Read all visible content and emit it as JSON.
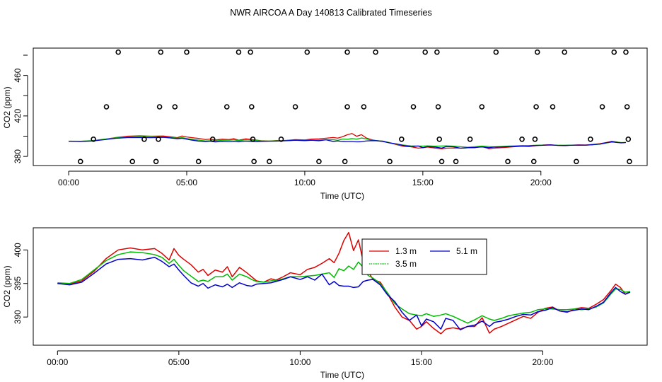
{
  "title": "NWR AIRCOA A  Day 140813  Calibrated Timeseries",
  "colors": {
    "s13": "#dd0000",
    "s35": "#00bb00",
    "s51": "#0000cc",
    "points": "#000000"
  },
  "chart_data": [
    {
      "type": "scatter+line",
      "xlabel": "Time (UTC)",
      "ylabel": "CO2 (ppm)",
      "xlim": [
        -1.5,
        24.5
      ],
      "ylim": [
        371,
        487
      ],
      "xticks": [
        0,
        5,
        10,
        15,
        20
      ],
      "xtick_labels": [
        "00:00",
        "05:00",
        "10:00",
        "15:00",
        "20:00"
      ],
      "yticks": [
        380,
        420,
        460
      ],
      "ytick_labels": [
        "380",
        "420",
        "460"
      ],
      "scatter_points": [
        [
          0.5,
          375
        ],
        [
          1.05,
          397
        ],
        [
          1.6,
          429
        ],
        [
          2.1,
          483
        ],
        [
          2.7,
          375
        ],
        [
          3.2,
          397
        ],
        [
          3.7,
          375
        ],
        [
          3.8,
          397
        ],
        [
          3.85,
          429
        ],
        [
          3.9,
          483
        ],
        [
          4.5,
          429
        ],
        [
          5.0,
          483
        ],
        [
          5.5,
          375
        ],
        [
          6.1,
          397
        ],
        [
          6.7,
          429
        ],
        [
          7.2,
          483
        ],
        [
          7.7,
          483
        ],
        [
          7.75,
          429
        ],
        [
          7.8,
          397
        ],
        [
          7.85,
          375
        ],
        [
          8.5,
          375
        ],
        [
          9.0,
          397
        ],
        [
          9.6,
          429
        ],
        [
          10.1,
          483
        ],
        [
          10.6,
          375
        ],
        [
          11.8,
          483
        ],
        [
          11.8,
          429
        ],
        [
          11.7,
          375
        ],
        [
          12.5,
          429
        ],
        [
          13.0,
          483
        ],
        [
          13.6,
          375
        ],
        [
          14.1,
          397
        ],
        [
          14.6,
          429
        ],
        [
          15.1,
          483
        ],
        [
          15.6,
          483
        ],
        [
          15.65,
          429
        ],
        [
          15.7,
          397
        ],
        [
          15.8,
          375
        ],
        [
          16.4,
          375
        ],
        [
          17.0,
          397
        ],
        [
          17.5,
          429
        ],
        [
          18.1,
          483
        ],
        [
          18.6,
          375
        ],
        [
          19.2,
          397
        ],
        [
          19.7,
          375
        ],
        [
          19.75,
          397
        ],
        [
          19.8,
          429
        ],
        [
          19.85,
          483
        ],
        [
          20.5,
          429
        ],
        [
          21.0,
          483
        ],
        [
          21.5,
          375
        ],
        [
          22.1,
          397
        ],
        [
          22.6,
          429
        ],
        [
          23.1,
          483
        ],
        [
          23.6,
          483
        ],
        [
          23.65,
          429
        ],
        [
          23.7,
          397
        ],
        [
          23.75,
          375
        ]
      ],
      "series": [
        {
          "name": "1.3 m",
          "color": "#dd0000"
        },
        {
          "name": "3.5 m",
          "color": "#00bb00"
        },
        {
          "name": "5.1 m",
          "color": "#0000cc"
        }
      ]
    },
    {
      "type": "line",
      "xlabel": "Time (UTC)",
      "ylabel": "CO2 (ppm)",
      "xlim": [
        -1.0,
        24.3
      ],
      "ylim": [
        385.8,
        403.3
      ],
      "xticks": [
        0,
        5,
        10,
        15,
        20
      ],
      "xtick_labels": [
        "00:00",
        "05:00",
        "10:00",
        "15:00",
        "20:00"
      ],
      "yticks": [
        390,
        395,
        400
      ],
      "ytick_labels": [
        "390",
        "395",
        "400"
      ],
      "legend": {
        "position": "top-center",
        "entries": [
          "1.3 m",
          "5.1 m",
          "3.5 m"
        ]
      },
      "series": [
        {
          "name": "1.3 m",
          "color": "#dd0000",
          "x": [
            0,
            0.5,
            1,
            1.5,
            2,
            2.5,
            3,
            3.5,
            4,
            4.3,
            4.6,
            4.8,
            5,
            5.2,
            5.5,
            5.8,
            6,
            6.2,
            6.5,
            6.8,
            7,
            7.2,
            7.5,
            7.8,
            8,
            8.2,
            8.5,
            8.8,
            9,
            9.3,
            9.6,
            10,
            10.3,
            10.6,
            10.9,
            11.2,
            11.4,
            11.6,
            11.8,
            12,
            12.2,
            12.4,
            12.6,
            12.8,
            13,
            13.3,
            13.6,
            13.9,
            14.2,
            14.5,
            14.8,
            15,
            15.2,
            15.5,
            15.8,
            16,
            16.3,
            16.6,
            16.9,
            17.2,
            17.5,
            17.8,
            18,
            18.3,
            18.6,
            18.9,
            19.2,
            19.5,
            19.8,
            20.1,
            20.4,
            20.7,
            21,
            21.3,
            21.6,
            21.9,
            22.2,
            22.5,
            22.8,
            23,
            23.2,
            23.4,
            23.6
          ],
          "y": [
            395.0,
            394.9,
            395.4,
            396.8,
            398.7,
            400.0,
            400.3,
            400.0,
            400.2,
            399.5,
            398.5,
            400.2,
            399.2,
            398.6,
            397.8,
            396.7,
            397.1,
            396.2,
            397.0,
            396.7,
            397.5,
            396.0,
            397.4,
            396.6,
            396.0,
            395.4,
            395.2,
            395.7,
            395.5,
            396.0,
            396.6,
            396.3,
            397.1,
            397.4,
            398.0,
            398.7,
            398.1,
            399.5,
            401.4,
            402.6,
            399.9,
            401.5,
            398.3,
            396.8,
            395.6,
            395.2,
            393.5,
            391.5,
            390.0,
            389.5,
            388.2,
            388.6,
            389.3,
            388.3,
            387.5,
            388.2,
            388.4,
            388.2,
            388.6,
            388.6,
            389.9,
            387.6,
            388.2,
            388.6,
            389.1,
            389.6,
            390.1,
            389.8,
            390.7,
            391.3,
            391.5,
            390.9,
            390.7,
            391.2,
            391.4,
            391.3,
            391.9,
            392.6,
            393.9,
            394.9,
            394.4,
            393.4,
            393.8
          ]
        },
        {
          "name": "3.5 m",
          "color": "#00bb00",
          "x": [
            0,
            0.5,
            1,
            1.5,
            2,
            2.5,
            3,
            3.5,
            4,
            4.3,
            4.6,
            4.8,
            5,
            5.2,
            5.5,
            5.8,
            6,
            6.2,
            6.5,
            6.8,
            7,
            7.2,
            7.5,
            7.8,
            8,
            8.2,
            8.5,
            8.8,
            9,
            9.3,
            9.6,
            10,
            10.3,
            10.6,
            10.9,
            11.2,
            11.4,
            11.6,
            11.8,
            12,
            12.2,
            12.4,
            12.6,
            12.8,
            13,
            13.3,
            13.6,
            13.9,
            14.2,
            14.5,
            14.8,
            15,
            15.2,
            15.5,
            15.8,
            16,
            16.3,
            16.6,
            16.9,
            17.2,
            17.5,
            17.8,
            18,
            18.3,
            18.6,
            18.9,
            19.2,
            19.5,
            19.8,
            20.1,
            20.4,
            20.7,
            21,
            21.3,
            21.6,
            21.9,
            22.2,
            22.5,
            22.8,
            23,
            23.2,
            23.4,
            23.6
          ],
          "y": [
            395.1,
            395.0,
            395.6,
            397.0,
            398.4,
            399.3,
            399.7,
            399.6,
            399.3,
            398.9,
            398.0,
            398.6,
            397.7,
            396.9,
            396.1,
            395.3,
            395.5,
            395.3,
            396.0,
            396.0,
            396.4,
            395.5,
            396.4,
            396.0,
            395.6,
            395.3,
            395.2,
            395.4,
            395.4,
            395.7,
            396.0,
            396.0,
            396.1,
            396.2,
            396.4,
            396.6,
            395.9,
            397.2,
            396.9,
            397.6,
            397.1,
            398.2,
            397.4,
            396.2,
            395.8,
            395.0,
            393.6,
            392.0,
            391.2,
            390.5,
            390.3,
            390.2,
            390.5,
            390.1,
            390.3,
            390.5,
            390.1,
            389.6,
            389.1,
            389.6,
            390.2,
            389.7,
            389.5,
            389.8,
            390.2,
            390.4,
            390.6,
            390.7,
            391.1,
            391.2,
            391.2,
            391.1,
            391.1,
            391.2,
            391.1,
            391.2,
            391.5,
            392.1,
            393.4,
            394.2,
            394.1,
            393.7,
            393.8
          ]
        },
        {
          "name": "5.1 m",
          "color": "#0000cc",
          "x": [
            0,
            0.5,
            1,
            1.5,
            2,
            2.5,
            3,
            3.5,
            4,
            4.3,
            4.6,
            4.8,
            5,
            5.2,
            5.5,
            5.8,
            6,
            6.2,
            6.5,
            6.8,
            7,
            7.2,
            7.5,
            7.8,
            8,
            8.2,
            8.5,
            8.8,
            9,
            9.3,
            9.6,
            10,
            10.3,
            10.6,
            10.9,
            11.2,
            11.4,
            11.6,
            11.8,
            12,
            12.2,
            12.4,
            12.6,
            12.8,
            13,
            13.3,
            13.6,
            13.9,
            14.2,
            14.5,
            14.8,
            15,
            15.2,
            15.5,
            15.8,
            16,
            16.3,
            16.6,
            16.9,
            17.2,
            17.5,
            17.8,
            18,
            18.3,
            18.6,
            18.9,
            19.2,
            19.5,
            19.8,
            20.1,
            20.4,
            20.7,
            21,
            21.3,
            21.6,
            21.9,
            22.2,
            22.5,
            22.8,
            23,
            23.2,
            23.4,
            23.6
          ],
          "y": [
            395.0,
            394.8,
            395.2,
            396.5,
            397.9,
            398.6,
            398.7,
            398.5,
            398.9,
            398.3,
            397.5,
            397.9,
            397.0,
            396.2,
            395.1,
            394.6,
            395.0,
            394.3,
            394.8,
            394.5,
            394.9,
            394.4,
            395.1,
            394.7,
            394.6,
            394.9,
            395.0,
            395.1,
            395.3,
            395.6,
            396.0,
            395.6,
            396.0,
            395.5,
            396.4,
            394.8,
            395.3,
            394.7,
            394.6,
            394.6,
            394.4,
            394.5,
            395.3,
            395.5,
            395.6,
            394.8,
            393.3,
            392.3,
            390.7,
            389.5,
            390.3,
            388.7,
            389.7,
            389.3,
            388.2,
            389.8,
            389.5,
            388.1,
            388.6,
            388.8,
            389.4,
            388.6,
            389.2,
            389.4,
            389.7,
            390.1,
            390.4,
            390.3,
            390.8,
            391.0,
            391.4,
            390.9,
            390.8,
            391.0,
            391.2,
            391.1,
            391.6,
            392.2,
            393.6,
            394.4,
            393.8,
            393.4,
            393.7
          ]
        }
      ]
    }
  ]
}
